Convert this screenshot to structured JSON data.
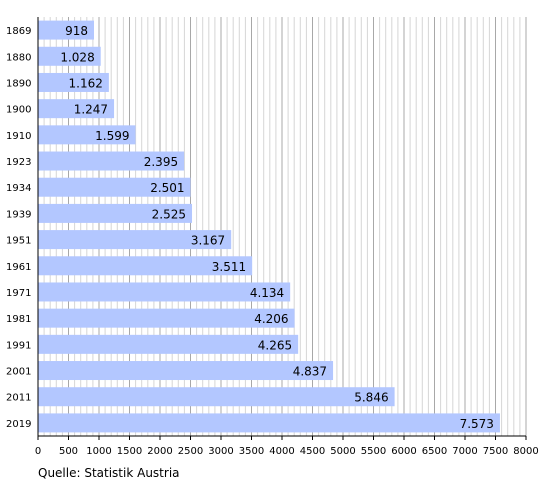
{
  "chart_data": {
    "type": "bar",
    "orientation": "horizontal",
    "categories": [
      "1869",
      "1880",
      "1890",
      "1900",
      "1910",
      "1923",
      "1934",
      "1939",
      "1951",
      "1961",
      "1971",
      "1981",
      "1991",
      "2001",
      "2011",
      "2019"
    ],
    "values": [
      918,
      1028,
      1162,
      1247,
      1599,
      2395,
      2501,
      2525,
      3167,
      3511,
      4134,
      4206,
      4265,
      4837,
      5846,
      7573
    ],
    "value_labels": [
      "918",
      "1.028",
      "1.162",
      "1.247",
      "1.599",
      "2.395",
      "2.501",
      "2.525",
      "3.167",
      "3.511",
      "4.134",
      "4.206",
      "4.265",
      "4.837",
      "5.846",
      "7.573"
    ],
    "xlim": [
      0,
      8000
    ],
    "x_ticks": [
      0,
      500,
      1000,
      1500,
      2000,
      2500,
      3000,
      3500,
      4000,
      4500,
      5000,
      5500,
      6000,
      6500,
      7000,
      7500,
      8000
    ],
    "grid": "vertical",
    "bar_color": "#b3c7ff"
  },
  "source_note": "Quelle: Statistik Austria"
}
